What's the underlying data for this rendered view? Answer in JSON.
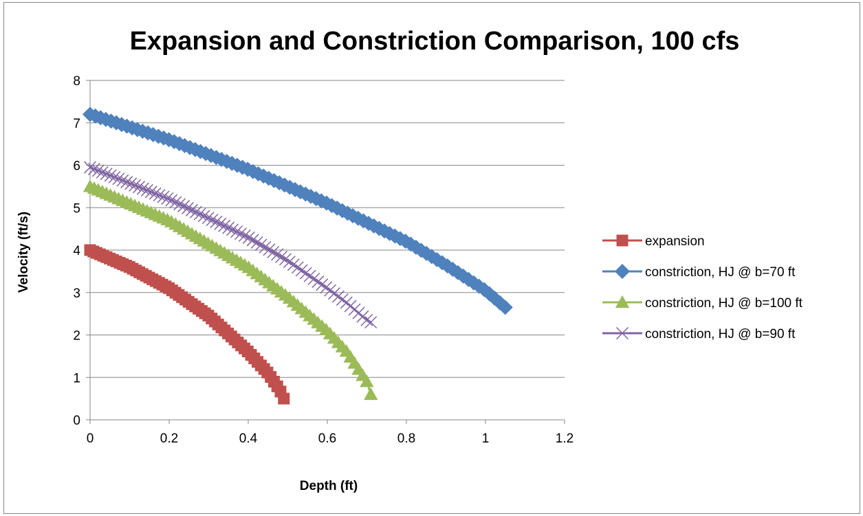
{
  "chart_data": {
    "type": "scatter",
    "title": "Expansion and Constriction Comparison, 100 cfs",
    "xlabel": "Depth (ft)",
    "ylabel": "Velocity (ft/s)",
    "xlim": [
      0,
      1.2
    ],
    "ylim": [
      0,
      8
    ],
    "xticks": [
      "0",
      "0.2",
      "0.4",
      "0.6",
      "0.8",
      "1",
      "1.2"
    ],
    "yticks": [
      "0",
      "1",
      "2",
      "3",
      "4",
      "5",
      "6",
      "7",
      "8"
    ],
    "grid": "horizontal",
    "legend_position": "right",
    "series": [
      {
        "name": "expansion",
        "color": "#C0504D",
        "marker": "square",
        "anchors": [
          [
            0,
            4.0
          ],
          [
            0.1,
            3.6
          ],
          [
            0.2,
            3.1
          ],
          [
            0.3,
            2.45
          ],
          [
            0.4,
            1.6
          ],
          [
            0.45,
            1.1
          ],
          [
            0.48,
            0.7
          ],
          [
            0.49,
            0.5
          ]
        ]
      },
      {
        "name": "constriction, HJ @ b=70 ft",
        "color": "#4F81BD",
        "marker": "diamond",
        "anchors": [
          [
            0,
            7.2
          ],
          [
            0.2,
            6.6
          ],
          [
            0.4,
            5.9
          ],
          [
            0.6,
            5.1
          ],
          [
            0.8,
            4.2
          ],
          [
            0.9,
            3.65
          ],
          [
            1.0,
            3.05
          ],
          [
            1.05,
            2.65
          ]
        ]
      },
      {
        "name": "constriction, HJ @ b=100 ft",
        "color": "#9BBB59",
        "marker": "triangle",
        "anchors": [
          [
            0,
            5.5
          ],
          [
            0.2,
            4.7
          ],
          [
            0.4,
            3.6
          ],
          [
            0.5,
            2.9
          ],
          [
            0.6,
            2.1
          ],
          [
            0.65,
            1.6
          ],
          [
            0.7,
            0.9
          ],
          [
            0.71,
            0.6
          ]
        ]
      },
      {
        "name": "constriction, HJ @ b=90 ft",
        "color": "#8064A2",
        "marker": "x",
        "anchors": [
          [
            0,
            5.95
          ],
          [
            0.2,
            5.2
          ],
          [
            0.4,
            4.3
          ],
          [
            0.5,
            3.75
          ],
          [
            0.6,
            3.1
          ],
          [
            0.65,
            2.75
          ],
          [
            0.7,
            2.35
          ],
          [
            0.71,
            2.3
          ]
        ]
      }
    ]
  }
}
